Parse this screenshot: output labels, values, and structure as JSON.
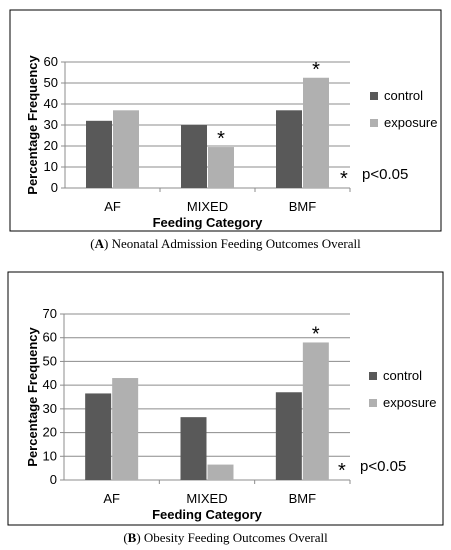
{
  "chart_data": [
    {
      "panel": "A",
      "type": "bar",
      "xlabel": "Feeding Category",
      "ylabel": "Percentage Frequency",
      "ylim": [
        0,
        60
      ],
      "ytick_step": 10,
      "grid": true,
      "legend_position": "right",
      "categories": [
        "AF",
        "MIXED",
        "BMF"
      ],
      "series": [
        {
          "name": "control",
          "color": "#595959",
          "values": [
            32,
            30,
            37
          ]
        },
        {
          "name": "exposure",
          "color": "#b0b0b0",
          "values": [
            37,
            19.5,
            52.5
          ]
        }
      ],
      "significance_markers": [
        {
          "category": "MIXED",
          "series": "exposure",
          "label": "*"
        },
        {
          "category": "BMF",
          "series": "exposure",
          "label": "*"
        }
      ],
      "annotation": {
        "marker": "*",
        "text": "p<0.05"
      },
      "caption": {
        "letter": "A",
        "text": " Neonatal Admission Feeding Outcomes Overall"
      }
    },
    {
      "panel": "B",
      "type": "bar",
      "xlabel": "Feeding Category",
      "ylabel": "Percentage Frequency",
      "ylim": [
        0,
        70
      ],
      "ytick_step": 10,
      "grid": true,
      "legend_position": "right",
      "categories": [
        "AF",
        "MIXED",
        "BMF"
      ],
      "series": [
        {
          "name": "control",
          "color": "#595959",
          "values": [
            36.5,
            26.5,
            37
          ]
        },
        {
          "name": "exposure",
          "color": "#b0b0b0",
          "values": [
            43,
            6.5,
            58
          ]
        }
      ],
      "significance_markers": [
        {
          "category": "BMF",
          "series": "exposure",
          "label": "*"
        }
      ],
      "annotation": {
        "marker": "*",
        "text": "p<0.05"
      },
      "caption": {
        "letter": "B",
        "text": " Obesity Feeding Outcomes Overall"
      }
    }
  ]
}
